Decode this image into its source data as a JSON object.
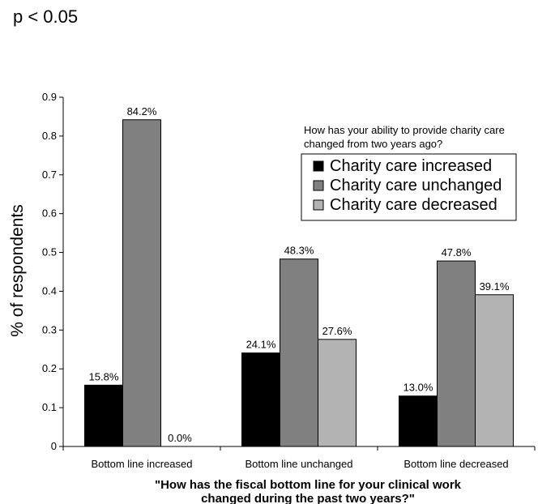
{
  "annotation": "p < 0.05",
  "chart_data": {
    "type": "bar",
    "categories": [
      "Bottom line increased",
      "Bottom line unchanged",
      "Bottom line decreased"
    ],
    "series": [
      {
        "name": "Charity care increased",
        "color": "#000000",
        "values": [
          0.158,
          0.241,
          0.13
        ],
        "labels": [
          "15.8%",
          "24.1%",
          "13.0%"
        ]
      },
      {
        "name": "Charity care unchanged",
        "color": "#808080",
        "values": [
          0.842,
          0.483,
          0.478
        ],
        "labels": [
          "84.2%",
          "48.3%",
          "47.8%"
        ]
      },
      {
        "name": "Charity care decreased",
        "color": "#b3b3b3",
        "values": [
          0.0,
          0.276,
          0.391
        ],
        "labels": [
          "0.0%",
          "27.6%",
          "39.1%"
        ]
      }
    ],
    "ylabel": "% of respondents",
    "xlabel_line1": "\"How has the fiscal bottom line for your clinical work",
    "xlabel_line2": "changed during the past two years?\"",
    "ylim": [
      0,
      0.9
    ],
    "yticks": [
      "0",
      "0.1",
      "0.2",
      "0.3",
      "0.4",
      "0.5",
      "0.6",
      "0.7",
      "0.8",
      "0.9"
    ],
    "legend_title_line1": "How has your ability to provide charity care",
    "legend_title_line2": "changed from two years ago?",
    "legend_position": "top-right",
    "grid": false
  }
}
